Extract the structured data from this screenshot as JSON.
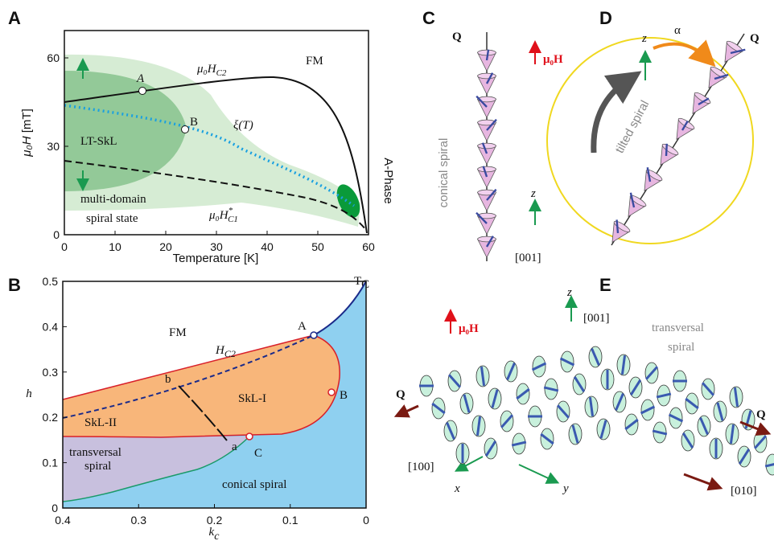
{
  "panels": {
    "A": {
      "label": "A",
      "y_label": {
        "text": "μ₀H",
        "rest": " [mT]"
      },
      "x_label": "Temperature [K]",
      "xlim": [
        0,
        60
      ],
      "xticks": [
        0,
        10,
        20,
        30,
        40,
        50,
        60
      ],
      "ylim": [
        0,
        60
      ],
      "yticks": [
        0,
        30,
        60
      ],
      "fm": "FM",
      "point_a": "A",
      "point_b": "B",
      "hc2": {
        "text": "μ₀H",
        "sub": "C2"
      },
      "xi": "ξ(T)",
      "lt_skl": "LT-SkL",
      "multi_domain": [
        "multi-domain",
        "spiral state"
      ],
      "hc1": {
        "text": "μ₀H",
        "sub": "C1",
        "sup": "*"
      },
      "a_phase": "A-Phase",
      "tc": {
        "text": "T",
        "sub": "C"
      }
    },
    "B": {
      "label": "B",
      "y_label": "h",
      "x_label": {
        "text": "k",
        "sub": "c"
      },
      "xlim": [
        0.4,
        0
      ],
      "xticks": [
        0.4,
        0.3,
        0.2,
        0.1,
        0
      ],
      "ylim": [
        0,
        0.5
      ],
      "yticks": [
        0,
        0.1,
        0.2,
        0.3,
        0.4,
        0.5
      ],
      "fm": "FM",
      "hc2": {
        "text": "H",
        "sub": "C2"
      },
      "point_a": "A",
      "point_b": "B",
      "point_c": "C",
      "b": "b",
      "a": "a",
      "skl2": "SkL-II",
      "skl1": "SkL-I",
      "transversal": [
        "transversal",
        "spiral"
      ],
      "conical": "conical spiral"
    },
    "C": {
      "label": "C",
      "q": "Q",
      "field": "μ₀H",
      "conical": "conical spiral",
      "z": "z",
      "dir": "[001]"
    },
    "D": {
      "label": "D",
      "z": "z",
      "alpha": "α",
      "q": "Q",
      "tilted": "tilted spiral"
    },
    "E": {
      "label": "E",
      "z": "z",
      "dir001": "[001]",
      "field": "μ₀H",
      "transversal": [
        "transversal",
        "spiral"
      ],
      "q_left": "Q",
      "q_right": "Q",
      "dir100": "[100]",
      "x": "x",
      "y": "y",
      "dir010": "[010]"
    }
  }
}
